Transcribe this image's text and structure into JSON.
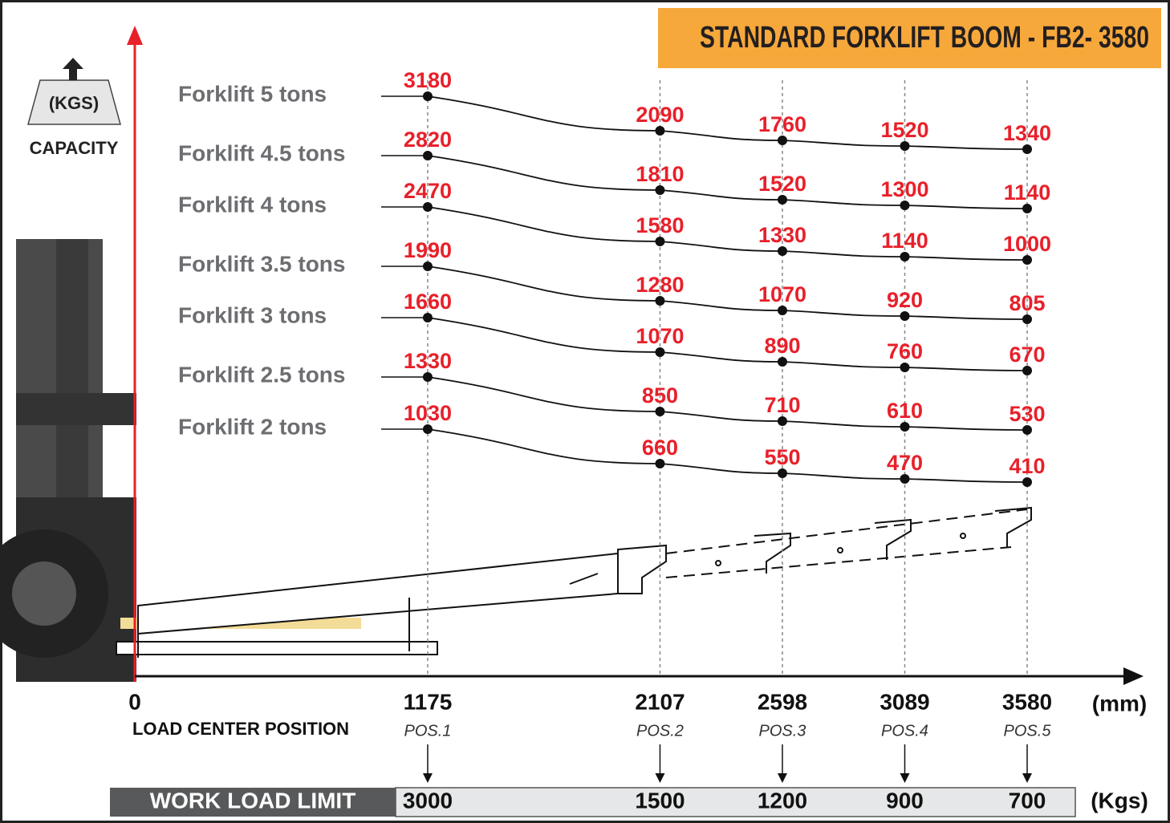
{
  "header": {
    "title": "STANDARD FORKLIFT BOOM - FB2- 3580"
  },
  "y_axis": {
    "unit": "(KGS)",
    "label": "CAPACITY"
  },
  "x_axis": {
    "origin": 0,
    "label": "LOAD CENTER POSITION",
    "unit": "(mm)",
    "positions": [
      {
        "value": 1175,
        "label": "POS.1"
      },
      {
        "value": 2107,
        "label": "POS.2"
      },
      {
        "value": 2598,
        "label": "POS.3"
      },
      {
        "value": 3089,
        "label": "POS.4"
      },
      {
        "value": 3580,
        "label": "POS.5"
      }
    ]
  },
  "series": [
    {
      "name": "Forklift 5 tons",
      "values": [
        3180,
        2090,
        1760,
        1520,
        1340
      ]
    },
    {
      "name": "Forklift 4.5 tons",
      "values": [
        2820,
        1810,
        1520,
        1300,
        1140
      ]
    },
    {
      "name": "Forklift 4 tons",
      "values": [
        2470,
        1580,
        1330,
        1140,
        1000
      ]
    },
    {
      "name": "Forklift 3.5 tons",
      "values": [
        1990,
        1280,
        1070,
        920,
        805
      ]
    },
    {
      "name": "Forklift 3 tons",
      "values": [
        1660,
        1070,
        890,
        760,
        670
      ]
    },
    {
      "name": "Forklift 2.5 tons",
      "values": [
        1330,
        850,
        710,
        610,
        530
      ]
    },
    {
      "name": "Forklift 2 tons",
      "values": [
        1030,
        660,
        550,
        470,
        410
      ]
    }
  ],
  "work_load_limit": {
    "label": "WORK LOAD LIMIT",
    "values": [
      3000,
      1500,
      1200,
      900,
      700
    ],
    "unit": "(Kgs)"
  }
}
